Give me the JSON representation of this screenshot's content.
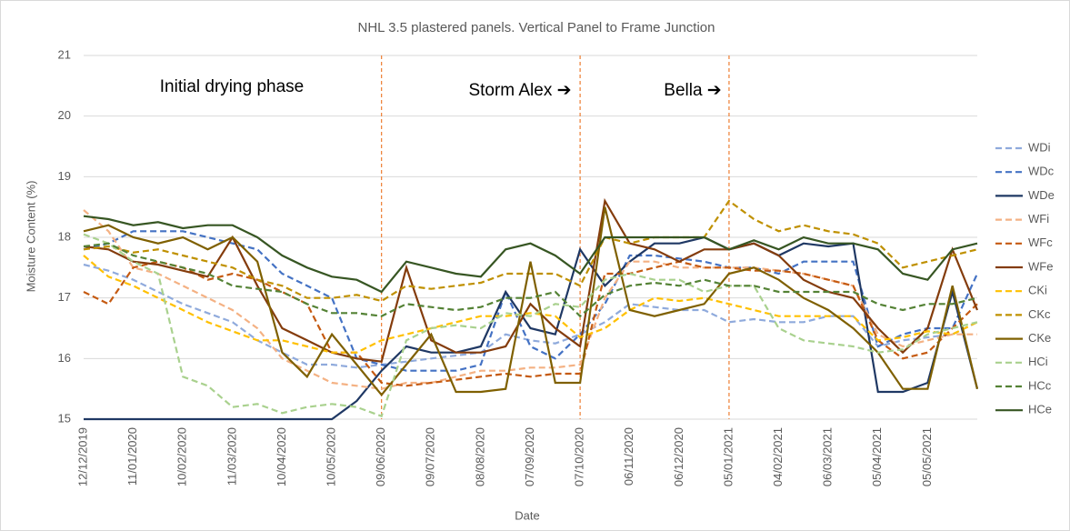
{
  "chart_data": {
    "type": "line",
    "title": "NHL 3.5 plastered panels. Vertical Panel to Frame Junction",
    "x_label": "Date",
    "y_label": "Moisture Content (%)",
    "categories": [
      "12/12/2019",
      null,
      "11/01/2020",
      null,
      "10/02/2020",
      null,
      "11/03/2020",
      null,
      "10/04/2020",
      null,
      "10/05/2020",
      null,
      "09/06/2020",
      null,
      "09/07/2020",
      null,
      "08/08/2020",
      null,
      "07/09/2020",
      null,
      "07/10/2020",
      null,
      "06/11/2020",
      null,
      "06/12/2020",
      null,
      "05/01/2021",
      null,
      "04/02/2021",
      null,
      "06/03/2021",
      null,
      "05/04/2021",
      null,
      "05/05/2021",
      null,
      null
    ],
    "ylim": [
      15,
      21
    ],
    "yticks": [
      15,
      16,
      17,
      18,
      19,
      20,
      21
    ],
    "grid": true,
    "legend": "right",
    "annotations": [
      {
        "text": "Initial drying phase"
      },
      {
        "text": "Storm Alex ➔"
      },
      {
        "text": "Bella ➔"
      }
    ],
    "vlines": [
      "09/06/2020",
      "07/10/2020",
      "05/01/2021"
    ],
    "series": [
      {
        "name": "WDi",
        "color": "#8faadc",
        "dashed": true,
        "values": [
          17.55,
          17.45,
          17.3,
          17.1,
          16.9,
          16.75,
          16.6,
          16.3,
          16.1,
          15.9,
          15.9,
          15.85,
          15.9,
          15.95,
          16.0,
          16.05,
          16.1,
          16.4,
          16.3,
          16.25,
          16.4,
          16.6,
          16.9,
          16.85,
          16.8,
          16.8,
          16.6,
          16.65,
          16.6,
          16.6,
          16.7,
          16.7,
          16.2,
          16.3,
          16.35,
          16.4,
          16.6
        ]
      },
      {
        "name": "WDc",
        "color": "#4472c4",
        "dashed": true,
        "values": [
          17.8,
          17.9,
          18.1,
          18.1,
          18.1,
          18.0,
          17.9,
          17.8,
          17.4,
          17.2,
          17.0,
          16.0,
          15.9,
          15.8,
          15.8,
          15.8,
          15.9,
          17.1,
          16.2,
          16.0,
          16.4,
          16.9,
          17.7,
          17.7,
          17.65,
          17.6,
          17.5,
          17.5,
          17.4,
          17.6,
          17.6,
          17.6,
          16.2,
          16.4,
          16.5,
          16.5,
          17.4
        ]
      },
      {
        "name": "WDe",
        "color": "#1f3864",
        "dashed": false,
        "values": [
          15.0,
          15.0,
          15.0,
          15.0,
          15.0,
          15.0,
          15.0,
          15.0,
          15.0,
          15.0,
          15.0,
          15.3,
          15.8,
          16.2,
          16.1,
          16.1,
          16.2,
          17.1,
          16.5,
          16.4,
          17.8,
          17.2,
          17.6,
          17.9,
          17.9,
          18.0,
          17.8,
          17.9,
          17.7,
          17.9,
          17.85,
          17.9,
          15.45,
          15.45,
          15.6,
          17.1,
          15.5
        ]
      },
      {
        "name": "WFi",
        "color": "#f4b183",
        "dashed": true,
        "values": [
          18.45,
          18.1,
          17.5,
          17.4,
          17.2,
          17.0,
          16.8,
          16.5,
          16.0,
          15.8,
          15.6,
          15.55,
          15.5,
          15.6,
          15.6,
          15.7,
          15.8,
          15.8,
          15.85,
          15.85,
          15.9,
          17.0,
          17.6,
          17.6,
          17.5,
          17.5,
          17.5,
          17.5,
          17.45,
          17.4,
          17.3,
          17.2,
          16.4,
          16.2,
          16.3,
          16.4,
          16.4
        ]
      },
      {
        "name": "WFc",
        "color": "#c55a11",
        "dashed": true,
        "values": [
          17.1,
          16.9,
          17.5,
          17.6,
          17.5,
          17.3,
          17.4,
          17.3,
          17.1,
          16.9,
          16.1,
          16.1,
          15.6,
          15.55,
          15.6,
          15.65,
          15.7,
          15.75,
          15.7,
          15.75,
          15.75,
          17.4,
          17.4,
          17.5,
          17.6,
          17.5,
          17.5,
          17.45,
          17.45,
          17.4,
          17.3,
          17.2,
          16.3,
          16.0,
          16.1,
          16.5,
          16.9
        ]
      },
      {
        "name": "WFe",
        "color": "#843c0c",
        "dashed": false,
        "values": [
          17.85,
          17.8,
          17.6,
          17.55,
          17.45,
          17.35,
          18.0,
          17.2,
          16.5,
          16.3,
          16.1,
          16.0,
          15.95,
          17.5,
          16.3,
          16.1,
          16.1,
          16.2,
          16.9,
          16.5,
          16.2,
          18.6,
          17.9,
          17.8,
          17.6,
          17.8,
          17.8,
          17.9,
          17.7,
          17.3,
          17.1,
          17.0,
          16.5,
          16.1,
          16.5,
          17.8,
          16.8
        ]
      },
      {
        "name": "CKi",
        "color": "#ffc000",
        "dashed": true,
        "values": [
          17.7,
          17.35,
          17.2,
          17.0,
          16.8,
          16.6,
          16.45,
          16.3,
          16.3,
          16.2,
          16.1,
          16.1,
          16.3,
          16.4,
          16.5,
          16.6,
          16.7,
          16.7,
          16.75,
          16.7,
          16.35,
          16.5,
          16.8,
          17.0,
          16.95,
          17.0,
          16.9,
          16.8,
          16.7,
          16.7,
          16.7,
          16.7,
          16.3,
          16.35,
          16.45,
          16.4,
          16.6
        ]
      },
      {
        "name": "CKc",
        "color": "#bf9000",
        "dashed": true,
        "values": [
          17.8,
          17.85,
          17.75,
          17.8,
          17.7,
          17.6,
          17.5,
          17.3,
          17.2,
          17.0,
          17.0,
          17.05,
          16.95,
          17.2,
          17.15,
          17.2,
          17.25,
          17.4,
          17.4,
          17.4,
          17.2,
          18.0,
          17.9,
          18.0,
          18.0,
          18.0,
          18.6,
          18.3,
          18.1,
          18.2,
          18.1,
          18.05,
          17.9,
          17.5,
          17.6,
          17.7,
          17.8
        ]
      },
      {
        "name": "CKe",
        "color": "#7f6000",
        "dashed": false,
        "values": [
          18.1,
          18.2,
          18.0,
          17.9,
          18.0,
          17.8,
          18.0,
          17.6,
          16.1,
          15.7,
          16.4,
          15.9,
          15.4,
          15.9,
          16.4,
          15.45,
          15.45,
          15.5,
          17.6,
          15.6,
          15.6,
          18.5,
          16.8,
          16.7,
          16.8,
          16.9,
          17.4,
          17.5,
          17.3,
          17.0,
          16.8,
          16.5,
          16.1,
          15.5,
          15.5,
          17.2,
          15.5
        ]
      },
      {
        "name": "HCi",
        "color": "#a9d18e",
        "dashed": true,
        "values": [
          18.05,
          17.9,
          17.6,
          17.4,
          15.7,
          15.55,
          15.2,
          15.25,
          15.1,
          15.2,
          15.25,
          15.2,
          15.05,
          16.3,
          16.5,
          16.55,
          16.5,
          16.75,
          16.7,
          16.9,
          16.85,
          17.3,
          17.4,
          17.3,
          17.3,
          17.1,
          17.2,
          17.2,
          16.5,
          16.3,
          16.25,
          16.2,
          16.1,
          16.15,
          16.4,
          16.5,
          16.6
        ]
      },
      {
        "name": "HCc",
        "color": "#548235",
        "dashed": true,
        "values": [
          17.85,
          17.9,
          17.7,
          17.6,
          17.5,
          17.4,
          17.2,
          17.15,
          17.1,
          16.9,
          16.75,
          16.75,
          16.7,
          16.9,
          16.85,
          16.8,
          16.85,
          17.0,
          17.0,
          17.1,
          16.7,
          17.05,
          17.2,
          17.25,
          17.2,
          17.3,
          17.2,
          17.2,
          17.1,
          17.1,
          17.1,
          17.1,
          16.9,
          16.8,
          16.9,
          16.9,
          17.0
        ]
      },
      {
        "name": "HCe",
        "color": "#375623",
        "dashed": false,
        "values": [
          18.35,
          18.3,
          18.2,
          18.25,
          18.15,
          18.2,
          18.2,
          18.0,
          17.7,
          17.5,
          17.35,
          17.3,
          17.1,
          17.6,
          17.5,
          17.4,
          17.35,
          17.8,
          17.9,
          17.7,
          17.4,
          18.0,
          18.0,
          18.0,
          18.0,
          18.0,
          17.8,
          17.95,
          17.8,
          18.0,
          17.9,
          17.9,
          17.8,
          17.4,
          17.3,
          17.8,
          17.9
        ]
      }
    ]
  }
}
